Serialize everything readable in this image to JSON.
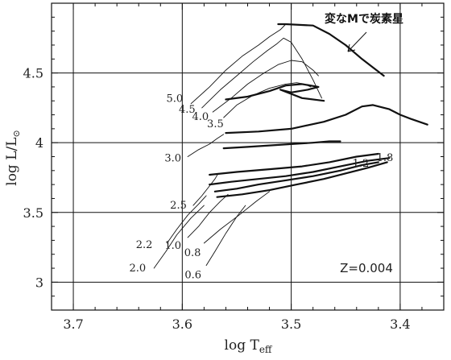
{
  "chart_data": {
    "type": "line",
    "xlabel": "log T",
    "xlabel_sub": "eff",
    "ylabel": "log L/L",
    "ylabel_sub": "⊙",
    "xlim": [
      3.72,
      3.36
    ],
    "ylim": [
      2.8,
      5.0
    ],
    "x_reversed": true,
    "x_ticks": [
      3.7,
      3.6,
      3.5,
      3.4
    ],
    "x_tick_labels": [
      "3.7",
      "3.6",
      "3.5",
      "3.4"
    ],
    "y_ticks": [
      3,
      3.5,
      4,
      4.5
    ],
    "y_tick_labels": [
      "3",
      "3.5",
      "4",
      "4.5"
    ],
    "grid": true,
    "annotation": "変なMで炭素星",
    "z_label": "Z=0.004",
    "series": [
      {
        "name": "5.0",
        "weight": "thin",
        "x": [
          3.592,
          3.575,
          3.56,
          3.545,
          3.53,
          3.52,
          3.51,
          3.505
        ],
        "y": [
          4.28,
          4.4,
          4.52,
          4.62,
          4.7,
          4.76,
          4.81,
          4.85
        ]
      },
      {
        "name": "4.5",
        "weight": "thin",
        "x": [
          3.582,
          3.565,
          3.55,
          3.535,
          3.522,
          3.513,
          3.507,
          3.5,
          3.49,
          3.48,
          3.472
        ],
        "y": [
          4.25,
          4.38,
          4.48,
          4.58,
          4.66,
          4.71,
          4.75,
          4.72,
          4.6,
          4.45,
          4.32
        ]
      },
      {
        "name": "4.0",
        "weight": "thin",
        "x": [
          3.572,
          3.555,
          3.54,
          3.525,
          3.512,
          3.5,
          3.49,
          3.48,
          3.475
        ],
        "y": [
          4.22,
          4.32,
          4.42,
          4.5,
          4.56,
          4.59,
          4.58,
          4.52,
          4.48
        ]
      },
      {
        "name": "3.5",
        "weight": "thin",
        "x": [
          3.562,
          3.55,
          3.535,
          3.52,
          3.505,
          3.495,
          3.488,
          3.482
        ],
        "y": [
          4.18,
          4.27,
          4.34,
          4.39,
          4.42,
          4.43,
          4.42,
          4.4
        ]
      },
      {
        "name": "3.0",
        "weight": "thin",
        "x": [
          3.595,
          3.585,
          3.575,
          3.568,
          3.562
        ],
        "y": [
          3.9,
          3.95,
          3.99,
          4.03,
          4.06
        ]
      },
      {
        "name": "2.5",
        "weight": "thin",
        "x": [
          3.59,
          3.582,
          3.575,
          3.57,
          3.567
        ],
        "y": [
          3.55,
          3.62,
          3.69,
          3.74,
          3.78
        ]
      },
      {
        "name": "2.2",
        "weight": "thin",
        "x": [
          3.614,
          3.605,
          3.595,
          3.585,
          3.578
        ],
        "y": [
          3.28,
          3.38,
          3.48,
          3.56,
          3.62
        ]
      },
      {
        "name": "2.0",
        "weight": "thin",
        "x": [
          3.626,
          3.615,
          3.605,
          3.592,
          3.58
        ],
        "y": [
          3.1,
          3.22,
          3.34,
          3.46,
          3.55
        ]
      },
      {
        "name": "1.0",
        "weight": "thin",
        "x": [
          3.595,
          3.585,
          3.575,
          3.565,
          3.558
        ],
        "y": [
          3.32,
          3.4,
          3.5,
          3.58,
          3.63
        ]
      },
      {
        "name": "0.6",
        "weight": "thin",
        "x": [
          3.578,
          3.57,
          3.56,
          3.55,
          3.542
        ],
        "y": [
          3.12,
          3.22,
          3.35,
          3.47,
          3.55
        ]
      },
      {
        "name": "0.8",
        "weight": "thin",
        "x": [
          3.58,
          3.565,
          3.548,
          3.532,
          3.52
        ],
        "y": [
          3.28,
          3.38,
          3.48,
          3.58,
          3.65
        ]
      },
      {
        "name": "",
        "weight": "thick",
        "x": [
          3.512,
          3.505,
          3.48,
          3.465,
          3.45,
          3.435,
          3.425,
          3.415
        ],
        "y": [
          4.85,
          4.85,
          4.84,
          4.78,
          4.7,
          4.6,
          4.54,
          4.48
        ]
      },
      {
        "name": "",
        "weight": "thick",
        "x": [
          3.56,
          3.54,
          3.52,
          3.505,
          3.49,
          3.475,
          3.485,
          3.5,
          3.51,
          3.49,
          3.47
        ],
        "y": [
          4.31,
          4.33,
          4.37,
          4.41,
          4.42,
          4.4,
          4.38,
          4.36,
          4.38,
          4.32,
          4.3
        ]
      },
      {
        "name": "",
        "weight": "thick",
        "x": [
          3.56,
          3.53,
          3.5,
          3.47,
          3.45,
          3.435,
          3.425,
          3.41,
          3.4,
          3.39,
          3.375
        ],
        "y": [
          4.07,
          4.08,
          4.1,
          4.15,
          4.2,
          4.26,
          4.27,
          4.24,
          4.2,
          4.17,
          4.13
        ]
      },
      {
        "name": "",
        "weight": "thick",
        "x": [
          3.562,
          3.54,
          3.52,
          3.5,
          3.48,
          3.465,
          3.455
        ],
        "y": [
          3.96,
          3.97,
          3.98,
          3.99,
          4.0,
          4.01,
          4.01
        ]
      },
      {
        "name": "",
        "weight": "thick",
        "x": [
          3.575,
          3.55,
          3.52,
          3.49,
          3.465,
          3.44,
          3.42
        ],
        "y": [
          3.77,
          3.79,
          3.81,
          3.83,
          3.86,
          3.9,
          3.92
        ]
      },
      {
        "name": "",
        "weight": "thick",
        "x": [
          3.575,
          3.555,
          3.53,
          3.505,
          3.48,
          3.455,
          3.43,
          3.41
        ],
        "y": [
          3.7,
          3.72,
          3.74,
          3.76,
          3.79,
          3.83,
          3.87,
          3.89
        ]
      },
      {
        "name": "",
        "weight": "thick",
        "x": [
          3.57,
          3.55,
          3.53,
          3.505,
          3.48,
          3.455,
          3.435,
          3.42
        ],
        "y": [
          3.65,
          3.67,
          3.7,
          3.73,
          3.76,
          3.8,
          3.84,
          3.86
        ]
      },
      {
        "name": "",
        "weight": "thick",
        "x": [
          3.568,
          3.545,
          3.52,
          3.495,
          3.47,
          3.45,
          3.43,
          3.412
        ],
        "y": [
          3.61,
          3.63,
          3.66,
          3.7,
          3.74,
          3.78,
          3.82,
          3.86
        ]
      }
    ]
  }
}
